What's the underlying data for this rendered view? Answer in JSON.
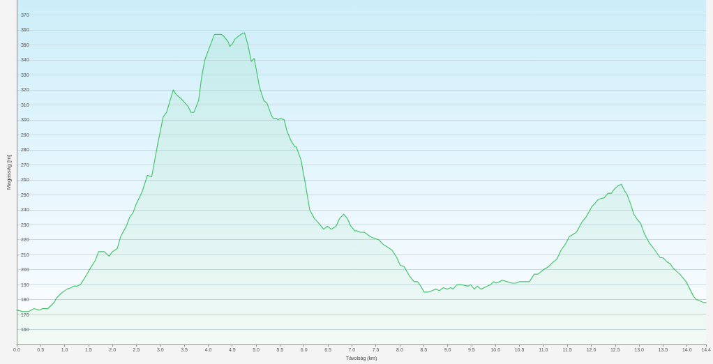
{
  "chart_data": {
    "type": "area",
    "xlabel": "Távolság (km)",
    "ylabel": "Magasság [m]",
    "color": "#45c46a",
    "marker": "none",
    "grid": "y",
    "xlim": [
      0,
      14.4
    ],
    "xticks": [
      {
        "value": 0,
        "label": "0.0"
      },
      0.5,
      {
        "value": 1,
        "label": "1.0"
      },
      1.5,
      {
        "value": 2,
        "label": "2.0"
      },
      2.5,
      {
        "value": 3,
        "label": "3.0"
      },
      3.5,
      {
        "value": 4,
        "label": "4.0"
      },
      4.5,
      {
        "value": 5,
        "label": "5.0"
      },
      5.5,
      {
        "value": 6,
        "label": "6.0"
      },
      6.5,
      {
        "value": 7,
        "label": "7.0"
      },
      7.5,
      {
        "value": 8,
        "label": "8.0"
      },
      8.5,
      {
        "value": 9,
        "label": "9.0"
      },
      9.5,
      {
        "value": 10,
        "label": "10.0"
      },
      10.5,
      {
        "value": 11,
        "label": "11.0"
      },
      11.5,
      {
        "value": 12,
        "label": "12.0"
      },
      12.5,
      {
        "value": 13,
        "label": "13.0"
      },
      13.5,
      {
        "value": 14,
        "label": "14.0"
      },
      14.4
    ],
    "ylim": [
      150,
      380
    ],
    "yticks": [
      160,
      170,
      180,
      190,
      200,
      210,
      220,
      230,
      240,
      250,
      260,
      270,
      280,
      290,
      300,
      310,
      320,
      330,
      340,
      350,
      360,
      370
    ],
    "x": [
      0,
      0.13,
      0.25,
      0.36,
      0.47,
      0.54,
      0.65,
      0.78,
      0.83,
      0.92,
      1.05,
      1.14,
      1.19,
      1.26,
      1.33,
      1.45,
      1.52,
      1.64,
      1.71,
      1.83,
      1.93,
      2.0,
      2.1,
      2.17,
      2.29,
      2.36,
      2.43,
      2.5,
      2.62,
      2.73,
      2.82,
      2.94,
      3.06,
      3.13,
      3.27,
      3.33,
      3.44,
      3.58,
      3.64,
      3.7,
      3.8,
      3.86,
      3.93,
      4.01,
      4.13,
      4.28,
      4.32,
      4.37,
      4.42,
      4.45,
      4.51,
      4.56,
      4.64,
      4.73,
      4.76,
      4.83,
      4.9,
      4.96,
      5.02,
      5.07,
      5.16,
      5.23,
      5.32,
      5.36,
      5.42,
      5.46,
      5.51,
      5.59,
      5.64,
      5.73,
      5.81,
      5.84,
      5.94,
      6.02,
      6.12,
      6.22,
      6.31,
      6.41,
      6.49,
      6.57,
      6.67,
      6.74,
      6.83,
      6.91,
      6.98,
      7.06,
      7.1,
      7.17,
      7.26,
      7.39,
      7.46,
      7.56,
      7.65,
      7.75,
      7.84,
      7.94,
      8.01,
      8.09,
      8.2,
      8.3,
      8.37,
      8.44,
      8.51,
      8.59,
      8.68,
      8.75,
      8.83,
      8.91,
      8.99,
      9.07,
      9.11,
      9.2,
      9.28,
      9.43,
      9.48,
      9.56,
      9.62,
      9.7,
      9.83,
      9.9,
      9.96,
      10.01,
      10.09,
      10.14,
      10.24,
      10.34,
      10.43,
      10.5,
      10.65,
      10.71,
      10.81,
      10.89,
      11.0,
      11.11,
      11.2,
      11.28,
      11.37,
      11.46,
      11.54,
      11.69,
      11.81,
      11.89,
      12.01,
      12.07,
      12.15,
      12.27,
      12.35,
      12.42,
      12.49,
      12.56,
      12.63,
      12.69,
      12.75,
      12.82,
      12.89,
      12.95,
      13.03,
      13.11,
      13.21,
      13.33,
      13.44,
      13.49,
      13.53,
      13.59,
      13.65,
      13.71,
      13.78,
      13.85,
      13.93,
      13.98,
      14.06,
      14.14,
      14.2,
      14.28,
      14.35,
      14.4
    ],
    "values": [
      173,
      172,
      172,
      174,
      173,
      174,
      174,
      178,
      181,
      184,
      187,
      188,
      189,
      189,
      190,
      196,
      200,
      206,
      212,
      212,
      209,
      212,
      214,
      222,
      229,
      235,
      238,
      244,
      252,
      263,
      262,
      283,
      302,
      305,
      320,
      317,
      314,
      309,
      305,
      305,
      313,
      328,
      340,
      347,
      357,
      357,
      356,
      354,
      352,
      349,
      351,
      354,
      356,
      358,
      358,
      350,
      339,
      341,
      331,
      322,
      313,
      311,
      303,
      301,
      301,
      300,
      301,
      300,
      293,
      286,
      282,
      282,
      273,
      259,
      240,
      234,
      231,
      227,
      229,
      227,
      229,
      234,
      237,
      234,
      229,
      226,
      226,
      225,
      225,
      222,
      221,
      220,
      217,
      215,
      213,
      208,
      203,
      202,
      196,
      192,
      192,
      189,
      185,
      185,
      186,
      187,
      186,
      188,
      187,
      188,
      187,
      190,
      190,
      189,
      190,
      187,
      189,
      187,
      189,
      190,
      192,
      191,
      192,
      193,
      192,
      191,
      191,
      192,
      192,
      192,
      197,
      197,
      200,
      202,
      205,
      207,
      213,
      217,
      222,
      225,
      232,
      235,
      242,
      244,
      247,
      248,
      251,
      251,
      254,
      256,
      257,
      253,
      250,
      244,
      237,
      234,
      231,
      224,
      218,
      213,
      208,
      208,
      207,
      205,
      204,
      201,
      199,
      197,
      194,
      192,
      187,
      182,
      180,
      179,
      178,
      178
    ]
  }
}
